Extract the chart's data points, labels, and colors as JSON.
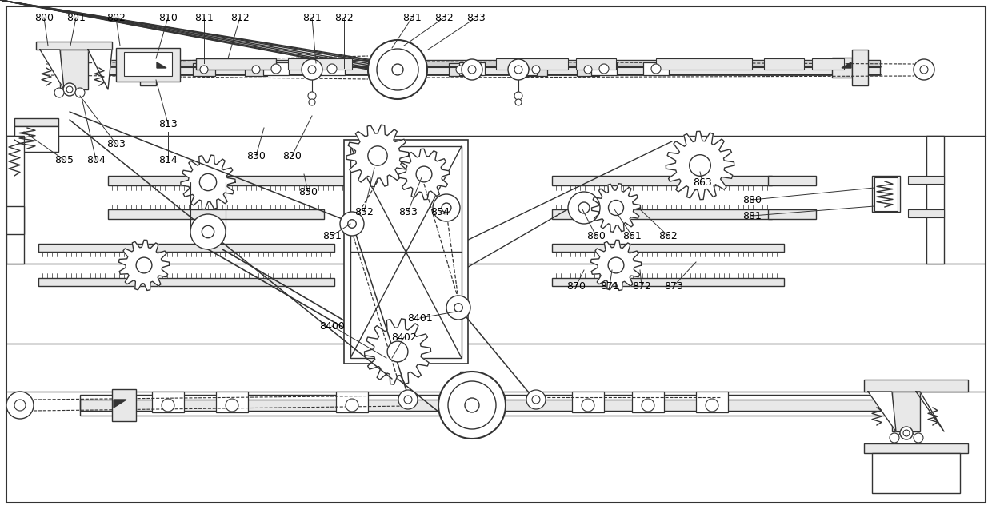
{
  "bg_color": "#ffffff",
  "line_color": "#333333",
  "lw": 1.0,
  "fig_width": 12.4,
  "fig_height": 6.37
}
